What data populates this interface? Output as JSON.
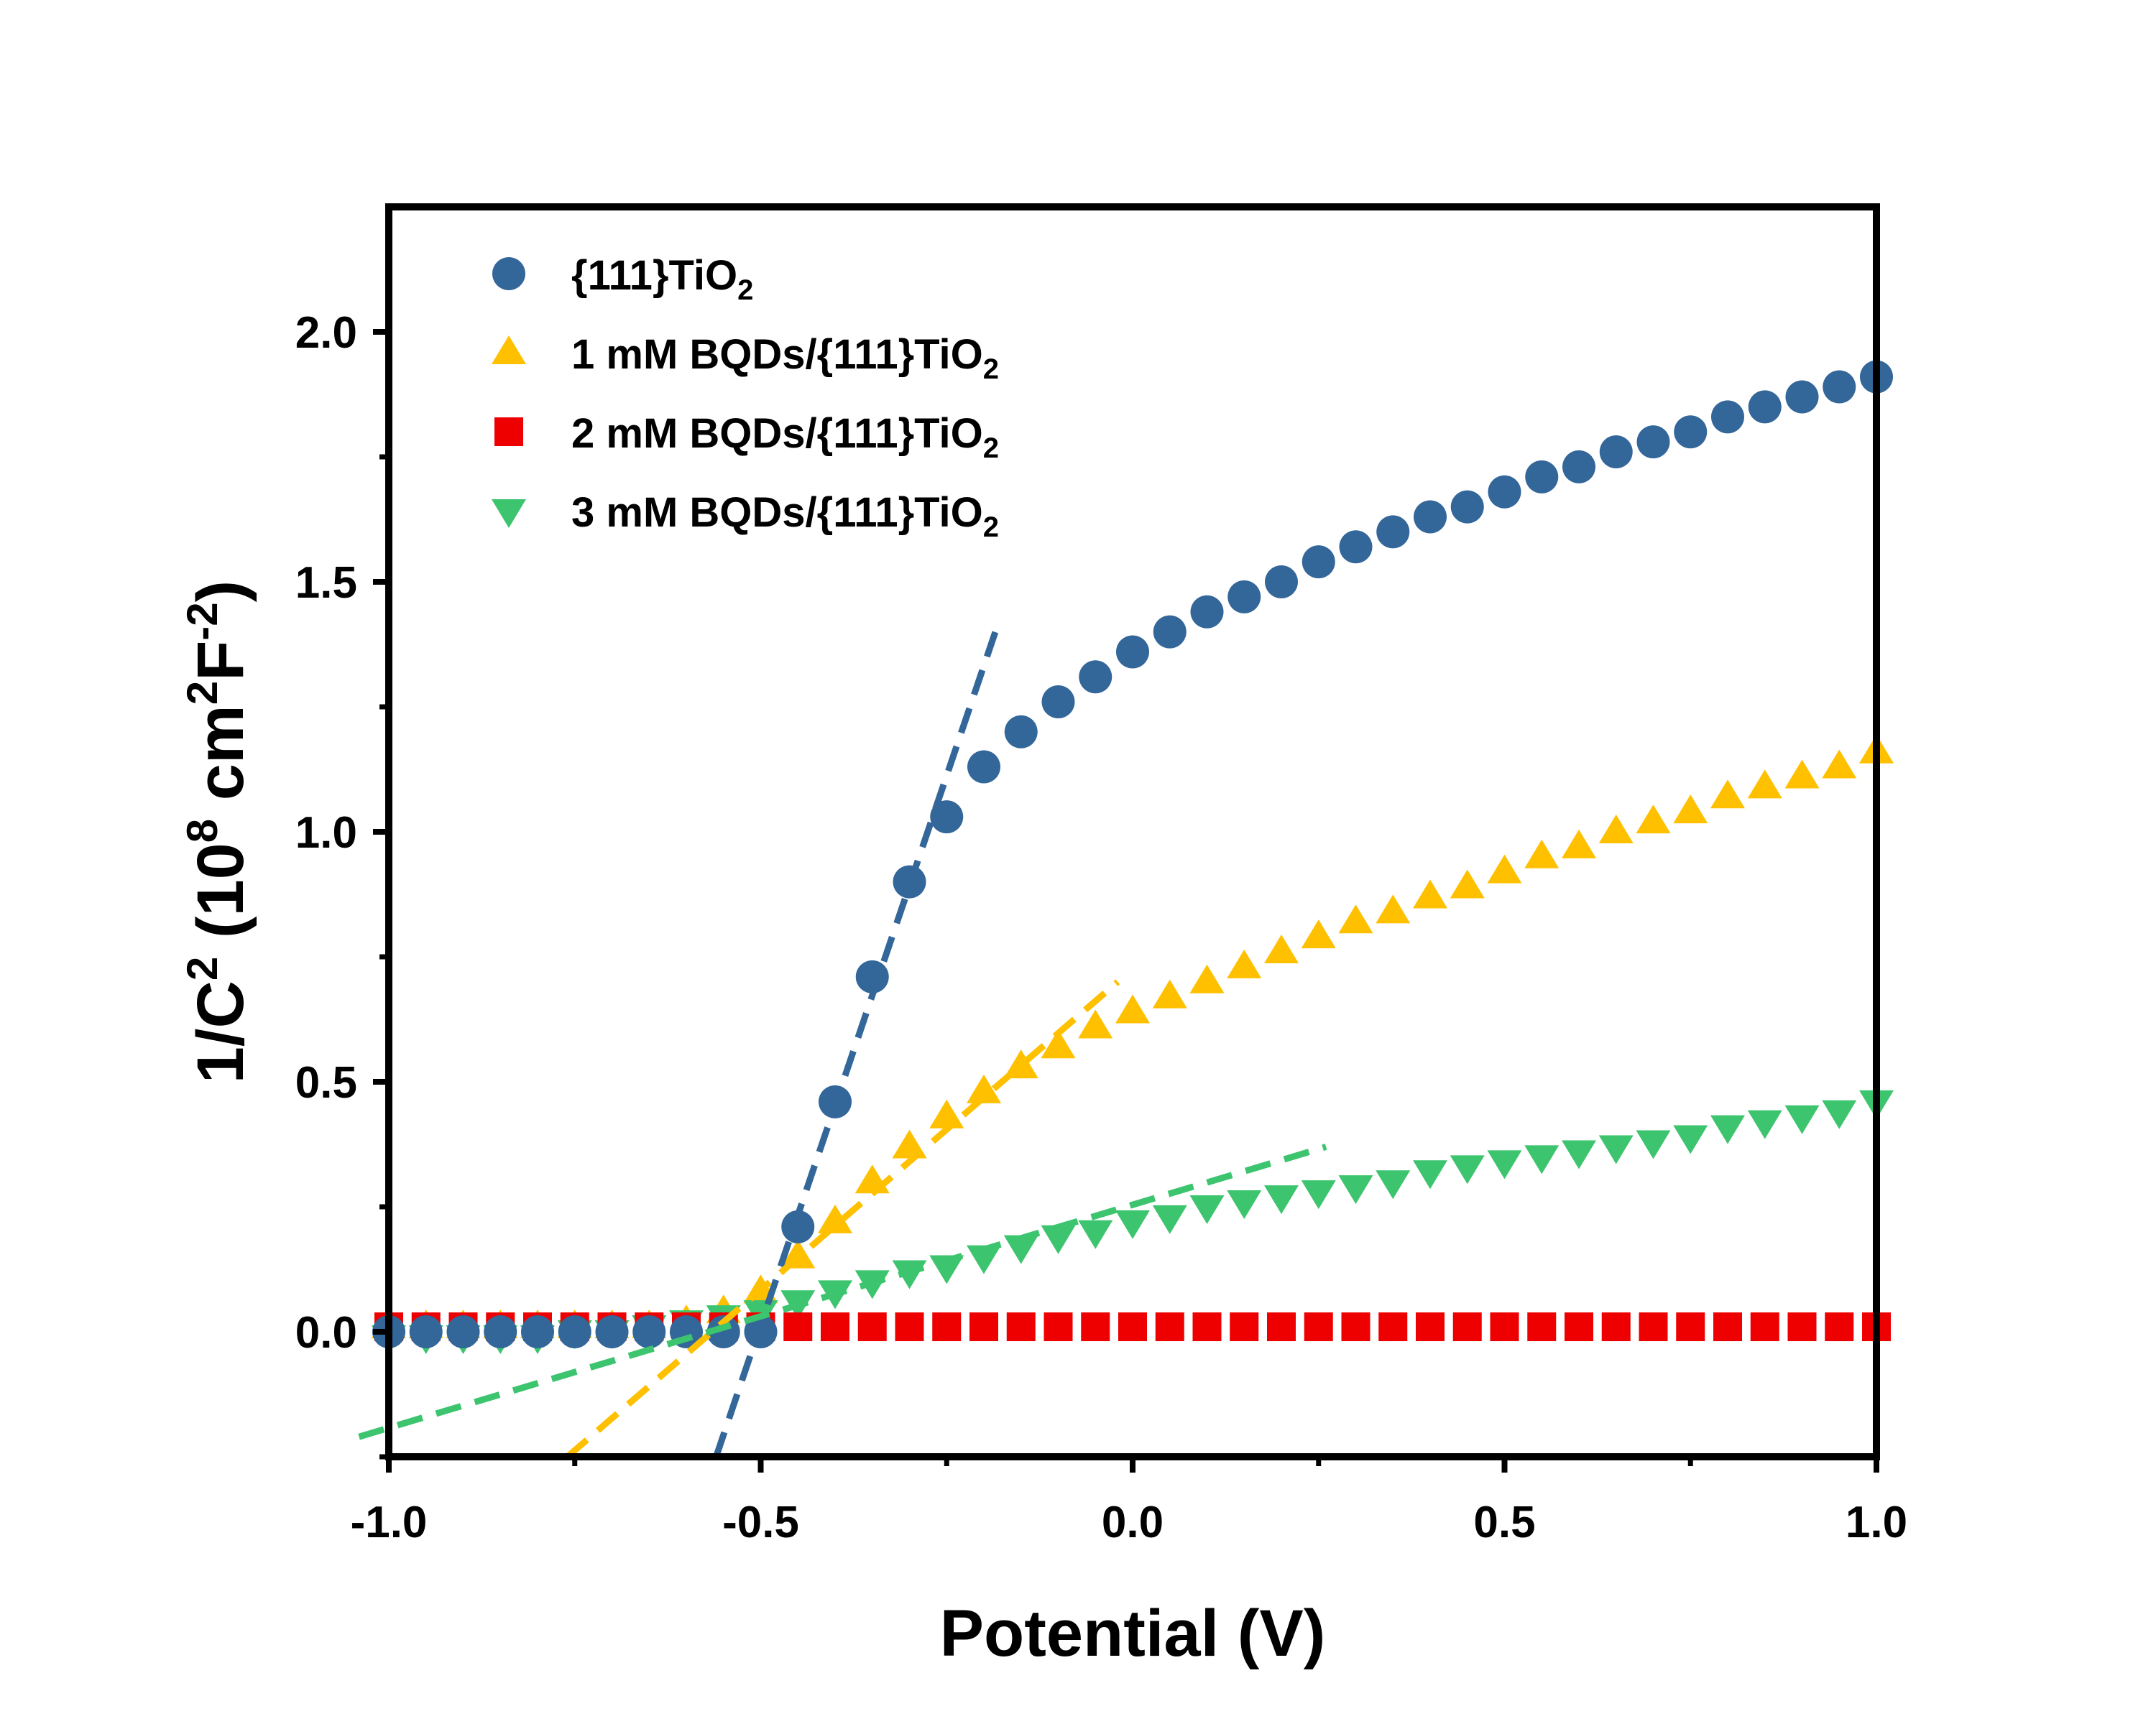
{
  "chart_data": {
    "type": "scatter",
    "title": "",
    "xlabel": "Potential (V)",
    "ylabel": {
      "main": "1/C",
      "sup1": "2",
      "mid": " (10",
      "sup2": "8",
      "mid2": " cm",
      "sup3": "2",
      "mid3": "F",
      "sup4": "-2",
      "end": ")"
    },
    "xlim": [
      -1.0,
      1.0
    ],
    "ylim": [
      -0.25,
      2.25
    ],
    "x_ticks": [
      "-1.0",
      "-0.5",
      "0.0",
      "0.5",
      "1.0"
    ],
    "x_tick_values": [
      -1.0,
      -0.5,
      0.0,
      0.5,
      1.0
    ],
    "y_ticks": [
      "0.0",
      "0.5",
      "1.0",
      "1.5",
      "2.0"
    ],
    "y_tick_values": [
      0.0,
      0.5,
      1.0,
      1.5,
      2.0
    ],
    "grid": false,
    "legend_position": "top-left",
    "series": [
      {
        "name": "{111}TiO",
        "name_sub": "2",
        "marker": "circle",
        "color": "#336699",
        "x": [
          -1.0,
          -0.95,
          -0.9,
          -0.85,
          -0.8,
          -0.75,
          -0.7,
          -0.65,
          -0.6,
          -0.55,
          -0.5,
          -0.45,
          -0.4,
          -0.35,
          -0.3,
          -0.25,
          -0.2,
          -0.15,
          -0.1,
          -0.05,
          0.0,
          0.05,
          0.1,
          0.15,
          0.2,
          0.25,
          0.3,
          0.35,
          0.4,
          0.45,
          0.5,
          0.55,
          0.6,
          0.65,
          0.7,
          0.75,
          0.8,
          0.85,
          0.9,
          0.95,
          1.0
        ],
        "y": [
          0.0,
          0.0,
          0.0,
          0.0,
          0.0,
          0.0,
          0.0,
          0.0,
          0.0,
          0.0,
          0.0,
          0.21,
          0.46,
          0.71,
          0.9,
          1.03,
          1.13,
          1.2,
          1.26,
          1.31,
          1.36,
          1.4,
          1.44,
          1.47,
          1.5,
          1.54,
          1.57,
          1.6,
          1.63,
          1.65,
          1.68,
          1.71,
          1.73,
          1.76,
          1.78,
          1.8,
          1.83,
          1.85,
          1.87,
          1.89,
          1.91
        ]
      },
      {
        "name": "1 mM BQDs/{111}TiO",
        "name_sub": "2",
        "marker": "triangle-up",
        "color": "#ffc000",
        "x": [
          -1.0,
          -0.95,
          -0.9,
          -0.85,
          -0.8,
          -0.75,
          -0.7,
          -0.65,
          -0.6,
          -0.55,
          -0.5,
          -0.45,
          -0.4,
          -0.35,
          -0.3,
          -0.25,
          -0.2,
          -0.15,
          -0.1,
          -0.05,
          0.0,
          0.05,
          0.1,
          0.15,
          0.2,
          0.25,
          0.3,
          0.35,
          0.4,
          0.45,
          0.5,
          0.55,
          0.6,
          0.65,
          0.7,
          0.75,
          0.8,
          0.85,
          0.9,
          0.95,
          1.0
        ],
        "y": [
          0.01,
          0.01,
          0.01,
          0.01,
          0.01,
          0.01,
          0.01,
          0.01,
          0.02,
          0.04,
          0.08,
          0.15,
          0.22,
          0.3,
          0.37,
          0.43,
          0.48,
          0.53,
          0.57,
          0.61,
          0.64,
          0.67,
          0.7,
          0.73,
          0.76,
          0.79,
          0.82,
          0.84,
          0.87,
          0.89,
          0.92,
          0.95,
          0.97,
          1.0,
          1.02,
          1.04,
          1.07,
          1.09,
          1.11,
          1.13,
          1.16
        ]
      },
      {
        "name": "2 mM BQDs/{111}TiO",
        "name_sub": "2",
        "marker": "square",
        "color": "#ee0000",
        "x": [
          -1.0,
          -0.95,
          -0.9,
          -0.85,
          -0.8,
          -0.75,
          -0.7,
          -0.65,
          -0.6,
          -0.55,
          -0.5,
          -0.45,
          -0.4,
          -0.35,
          -0.3,
          -0.25,
          -0.2,
          -0.15,
          -0.1,
          -0.05,
          0.0,
          0.05,
          0.1,
          0.15,
          0.2,
          0.25,
          0.3,
          0.35,
          0.4,
          0.45,
          0.5,
          0.55,
          0.6,
          0.65,
          0.7,
          0.75,
          0.8,
          0.85,
          0.9,
          0.95,
          1.0
        ],
        "y": [
          0.01,
          0.01,
          0.01,
          0.01,
          0.01,
          0.01,
          0.01,
          0.01,
          0.01,
          0.01,
          0.01,
          0.01,
          0.01,
          0.01,
          0.01,
          0.01,
          0.01,
          0.01,
          0.01,
          0.01,
          0.01,
          0.01,
          0.01,
          0.01,
          0.01,
          0.01,
          0.01,
          0.01,
          0.01,
          0.01,
          0.01,
          0.01,
          0.01,
          0.01,
          0.01,
          0.01,
          0.01,
          0.01,
          0.01,
          0.01,
          0.01
        ]
      },
      {
        "name": "3 mM BQDs/{111}TiO",
        "name_sub": "2",
        "marker": "triangle-down",
        "color": "#3cc46e",
        "x": [
          -1.0,
          -0.95,
          -0.9,
          -0.85,
          -0.8,
          -0.75,
          -0.7,
          -0.65,
          -0.6,
          -0.55,
          -0.5,
          -0.45,
          -0.4,
          -0.35,
          -0.3,
          -0.25,
          -0.2,
          -0.15,
          -0.1,
          -0.05,
          0.0,
          0.05,
          0.1,
          0.15,
          0.2,
          0.25,
          0.3,
          0.35,
          0.4,
          0.45,
          0.5,
          0.55,
          0.6,
          0.65,
          0.7,
          0.75,
          0.8,
          0.85,
          0.9,
          0.95,
          1.0
        ],
        "y": [
          -0.01,
          -0.01,
          -0.01,
          -0.01,
          -0.01,
          0.0,
          0.0,
          0.01,
          0.02,
          0.03,
          0.04,
          0.06,
          0.08,
          0.1,
          0.12,
          0.13,
          0.15,
          0.17,
          0.19,
          0.2,
          0.22,
          0.23,
          0.25,
          0.26,
          0.27,
          0.28,
          0.29,
          0.3,
          0.32,
          0.33,
          0.34,
          0.35,
          0.36,
          0.37,
          0.38,
          0.39,
          0.41,
          0.42,
          0.43,
          0.44,
          0.46
        ]
      }
    ],
    "fit_lines": [
      {
        "color": "#336699",
        "x": [
          -0.56,
          -0.18
        ],
        "y": [
          -0.25,
          1.42
        ]
      },
      {
        "color": "#ffc000",
        "x": [
          -0.76,
          -0.02
        ],
        "y": [
          -0.25,
          0.7
        ]
      },
      {
        "color": "#3cc46e",
        "x": [
          -1.04,
          0.26
        ],
        "y": [
          -0.21,
          0.37
        ]
      }
    ]
  }
}
